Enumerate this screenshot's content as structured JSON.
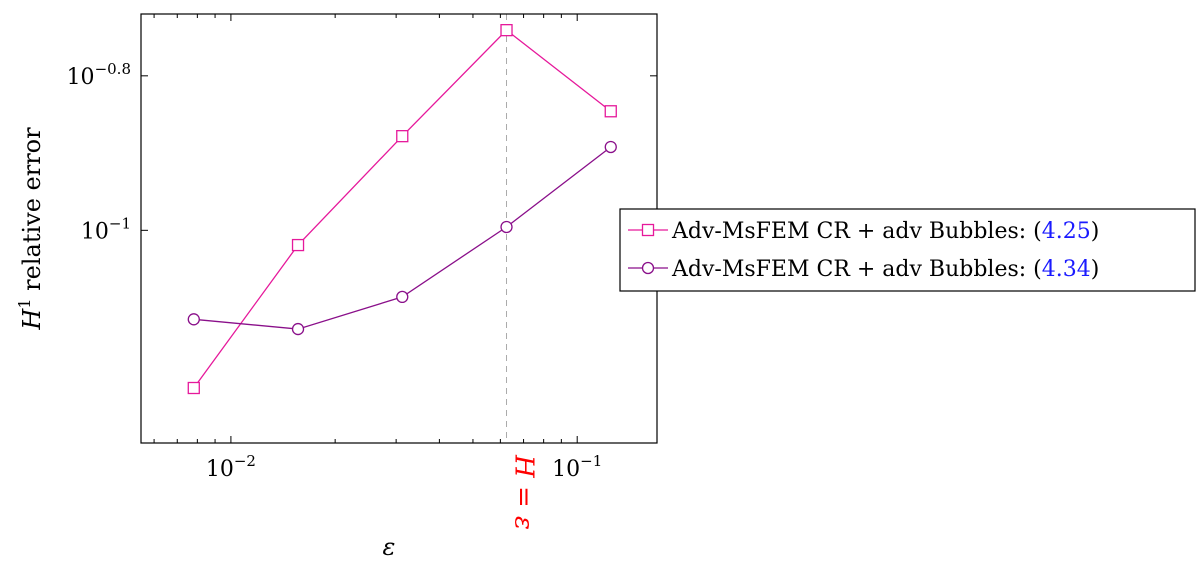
{
  "chart_data": {
    "type": "line",
    "x_scale": "log",
    "y_scale": "log",
    "xlabel": "ε",
    "ylabel_main": "H",
    "ylabel_sup": "1",
    "ylabel_rest": " relative error",
    "xlim": [
      0.0055,
      0.17
    ],
    "ylim": [
      0.05305,
      0.19056
    ],
    "x_ticks": [
      {
        "value": 0.01,
        "base": "10",
        "exp": "−2"
      },
      {
        "value": 0.1,
        "base": "10",
        "exp": "−1"
      }
    ],
    "y_ticks": [
      {
        "value": 0.15849,
        "base": "10",
        "exp": "−0.8"
      },
      {
        "value": 0.1,
        "base": "10",
        "exp": "−1"
      }
    ],
    "x_minor_ticks": [
      0.006,
      0.007,
      0.008,
      0.009,
      0.02,
      0.03,
      0.04,
      0.05,
      0.06,
      0.07,
      0.08,
      0.09
    ],
    "reference_line": {
      "x": 0.0625,
      "label": "H = ε",
      "color": "#ff0000"
    },
    "legend_position": "right",
    "series": [
      {
        "name": "Adv-MsFEM CR + adv Bubbles: (4.25)",
        "name_text": "Adv-MsFEM CR + adv Bubbles: (",
        "name_ref": "4.25",
        "name_close": ")",
        "marker": "square",
        "color": "#e6199b",
        "x": [
          0.0078125,
          0.015625,
          0.03125,
          0.0625,
          0.125
        ],
        "y": [
          0.0625,
          0.0957,
          0.1324,
          0.1816,
          0.1426
        ]
      },
      {
        "name": "Adv-MsFEM CR + adv Bubbles: (4.34)",
        "name_text": "Adv-MsFEM CR + adv Bubbles: (",
        "name_ref": "4.34",
        "name_close": ")",
        "marker": "circle",
        "color": "#8a0f8a",
        "x": [
          0.0078125,
          0.015625,
          0.03125,
          0.0625,
          0.125
        ],
        "y": [
          0.0767,
          0.0745,
          0.082,
          0.101,
          0.1282
        ]
      }
    ]
  }
}
